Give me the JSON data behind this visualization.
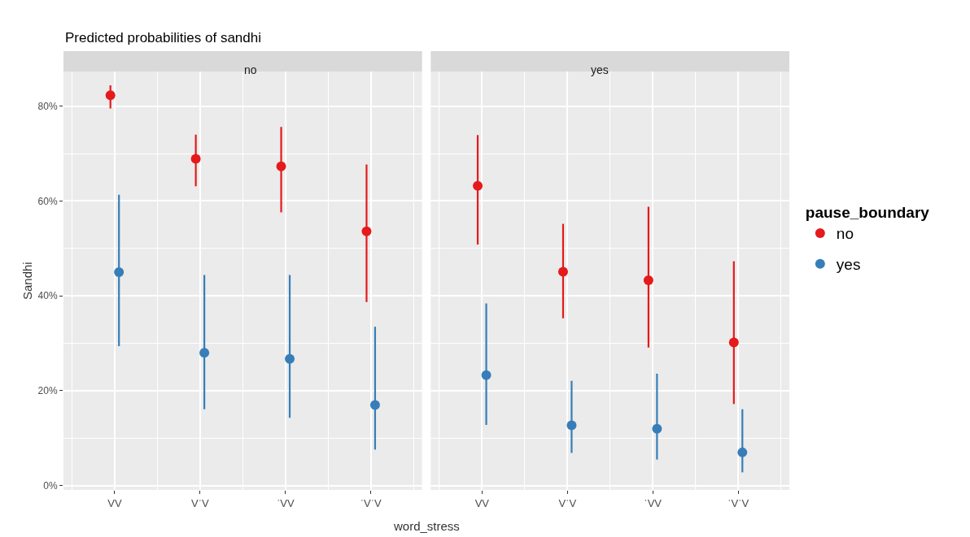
{
  "chart_data": [
    {
      "type": "scatter",
      "title": "Predicted probabilities of sandhi",
      "subtitle": "no",
      "xlabel": "word_stress",
      "ylabel": "Sandhi",
      "legend_title": "pause_boundary",
      "categories": [
        "VV",
        "VˈV",
        "ˈVV",
        "ˈVˈV"
      ],
      "ylim": [
        -0.9,
        87.3
      ],
      "yticks": [
        {
          "value": 0,
          "label": "0%"
        },
        {
          "value": 20,
          "label": "20%"
        },
        {
          "value": 40,
          "label": "40%"
        },
        {
          "value": 60,
          "label": "60%"
        },
        {
          "value": 80,
          "label": "80%"
        }
      ],
      "grid": true,
      "marker": "circle",
      "legend": "right",
      "series": [
        {
          "name": "no",
          "color": "#e41a1c",
          "values": [
            82.3,
            68.9,
            67.3,
            53.6
          ],
          "errors": [
            [
              79.5,
              84.4
            ],
            [
              63.1,
              74.0
            ],
            [
              57.6,
              75.6
            ],
            [
              38.7,
              67.7
            ]
          ]
        },
        {
          "name": "yes",
          "color": "#377eb8",
          "values": [
            45.0,
            28.0,
            26.7,
            17.0
          ],
          "errors": [
            [
              29.4,
              61.3
            ],
            [
              16.1,
              44.4
            ],
            [
              14.3,
              44.4
            ],
            [
              7.6,
              33.5
            ]
          ]
        }
      ]
    },
    {
      "type": "scatter",
      "subtitle": "yes",
      "categories": [
        "VV",
        "VˈV",
        "ˈVV",
        "ˈVˈV"
      ],
      "ylim": [
        -0.9,
        87.3
      ],
      "yticks": [
        {
          "value": 0,
          "label": null
        },
        {
          "value": 20,
          "label": null
        },
        {
          "value": 40,
          "label": null
        },
        {
          "value": 60,
          "label": null
        },
        {
          "value": 80,
          "label": null
        }
      ],
      "tick_labels": "x",
      "grid": true,
      "marker": "circle",
      "series": [
        {
          "color": "#e41a1c",
          "values": [
            63.2,
            45.1,
            43.3,
            30.2
          ],
          "errors": [
            [
              50.8,
              73.9
            ],
            [
              35.3,
              55.2
            ],
            [
              29.1,
              58.8
            ],
            [
              17.2,
              47.3
            ]
          ]
        },
        {
          "color": "#377eb8",
          "values": [
            23.3,
            12.7,
            12.0,
            7.0
          ],
          "errors": [
            [
              12.8,
              38.4
            ],
            [
              6.9,
              22.1
            ],
            [
              5.5,
              23.6
            ],
            [
              2.8,
              16.1
            ]
          ]
        }
      ]
    }
  ]
}
